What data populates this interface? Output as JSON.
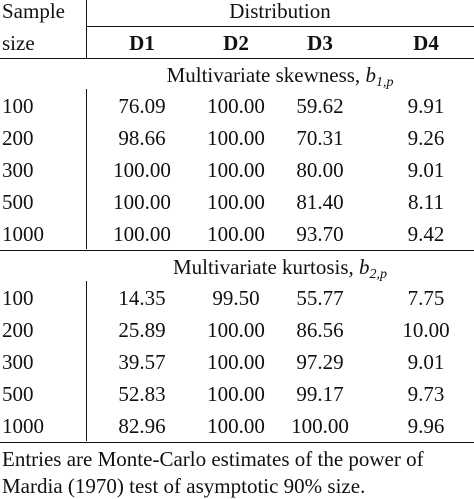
{
  "header": {
    "sample_label_line1": "Sample",
    "sample_label_line2": "size",
    "distribution_label": "Distribution",
    "columns": [
      "D1",
      "D2",
      "D3",
      "D4"
    ]
  },
  "sections": [
    {
      "label_text": "Multivariate skewness, ",
      "label_symbol": "b",
      "label_subscript": "1,p",
      "rows": [
        {
          "size": "100",
          "values": [
            "76.09",
            "100.00",
            "59.62",
            "9.91"
          ]
        },
        {
          "size": "200",
          "values": [
            "98.66",
            "100.00",
            "70.31",
            "9.26"
          ]
        },
        {
          "size": "300",
          "values": [
            "100.00",
            "100.00",
            "80.00",
            "9.01"
          ]
        },
        {
          "size": "500",
          "values": [
            "100.00",
            "100.00",
            "81.40",
            "8.11"
          ]
        },
        {
          "size": "1000",
          "values": [
            "100.00",
            "100.00",
            "93.70",
            "9.42"
          ]
        }
      ]
    },
    {
      "label_text": "Multivariate kurtosis, ",
      "label_symbol": "b",
      "label_subscript": "2,p",
      "rows": [
        {
          "size": "100",
          "values": [
            "14.35",
            "99.50",
            "55.77",
            "7.75"
          ]
        },
        {
          "size": "200",
          "values": [
            "25.89",
            "100.00",
            "86.56",
            "10.00"
          ]
        },
        {
          "size": "300",
          "values": [
            "39.57",
            "100.00",
            "97.29",
            "9.01"
          ]
        },
        {
          "size": "500",
          "values": [
            "52.83",
            "100.00",
            "99.17",
            "9.73"
          ]
        },
        {
          "size": "1000",
          "values": [
            "82.96",
            "100.00",
            "100.00",
            "9.96"
          ]
        }
      ]
    }
  ],
  "footnote": {
    "line1": "Entries are Monte-Carlo estimates of the power of",
    "line2": "Mardia (1970) test of asymptotic 90% size."
  }
}
